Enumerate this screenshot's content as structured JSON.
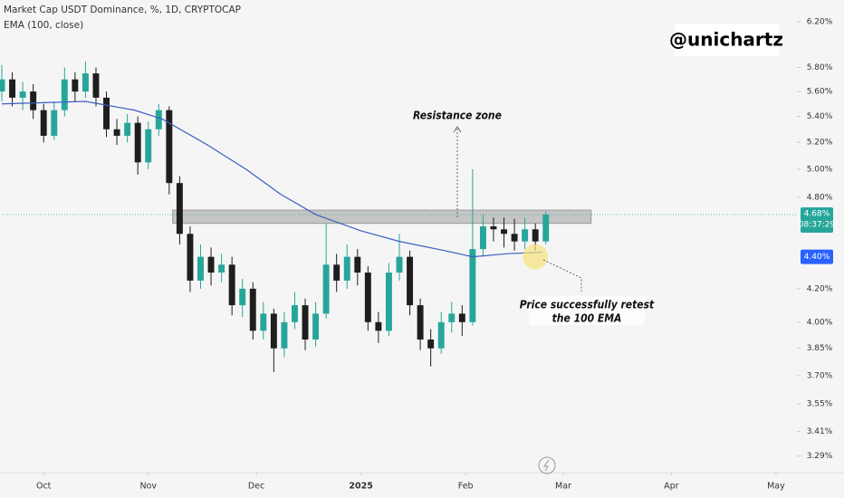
{
  "chart_data": {
    "type": "candlestick",
    "title": "Market Cap USDT Dominance, %, 1D, CRYPTOCAP",
    "subtitle": "EMA (100, close)",
    "watermark": "@unichartz",
    "log_scale": true,
    "up_color": "#26a69a",
    "down_color": "#1e1e1e",
    "x": [
      0,
      3,
      6,
      9,
      12,
      15,
      18,
      21,
      24,
      27,
      30,
      33,
      36,
      39,
      42,
      45,
      48,
      51,
      54,
      57,
      60,
      63,
      66,
      69,
      72,
      75,
      78,
      81,
      84,
      87,
      90,
      93,
      96,
      99,
      102,
      105,
      108,
      111,
      114,
      117,
      120,
      123,
      126,
      129,
      132,
      135,
      138,
      141,
      144,
      147,
      150,
      153,
      156
    ],
    "open": [
      5.6,
      5.7,
      5.55,
      5.6,
      5.45,
      5.25,
      5.45,
      5.7,
      5.6,
      5.75,
      5.55,
      5.3,
      5.25,
      5.35,
      5.05,
      5.3,
      5.45,
      4.9,
      4.55,
      4.25,
      4.4,
      4.3,
      4.35,
      4.1,
      4.2,
      3.95,
      4.05,
      3.85,
      4.0,
      4.1,
      3.9,
      4.05,
      4.35,
      4.25,
      4.4,
      4.3,
      4.0,
      3.95,
      4.3,
      4.4,
      4.1,
      3.9,
      3.85,
      4.0,
      4.05,
      4.0,
      4.45,
      4.6,
      4.58,
      4.55,
      4.5,
      4.58,
      4.5
    ],
    "high": [
      5.82,
      5.76,
      5.68,
      5.66,
      5.5,
      5.52,
      5.8,
      5.76,
      5.85,
      5.8,
      5.6,
      5.38,
      5.42,
      5.4,
      5.36,
      5.5,
      5.48,
      4.95,
      4.6,
      4.48,
      4.46,
      4.42,
      4.4,
      4.26,
      4.24,
      4.12,
      4.08,
      4.06,
      4.18,
      4.14,
      4.12,
      4.62,
      4.42,
      4.48,
      4.45,
      4.34,
      4.06,
      4.36,
      4.55,
      4.44,
      4.14,
      3.96,
      4.06,
      4.12,
      4.1,
      5.0,
      4.68,
      4.66,
      4.66,
      4.65,
      4.66,
      4.62,
      4.7
    ],
    "low": [
      5.52,
      5.48,
      5.45,
      5.38,
      5.2,
      5.22,
      5.4,
      5.52,
      5.55,
      5.48,
      5.24,
      5.18,
      5.2,
      4.96,
      5.0,
      5.25,
      4.82,
      4.48,
      4.18,
      4.2,
      4.22,
      4.24,
      4.04,
      4.03,
      3.9,
      3.9,
      3.72,
      3.8,
      3.96,
      3.84,
      3.86,
      4.02,
      4.18,
      4.2,
      4.22,
      3.95,
      3.88,
      3.92,
      4.25,
      4.04,
      3.84,
      3.75,
      3.82,
      3.94,
      3.92,
      3.98,
      4.4,
      4.5,
      4.46,
      4.44,
      4.45,
      4.44,
      4.48
    ],
    "close": [
      5.7,
      5.55,
      5.6,
      5.45,
      5.25,
      5.45,
      5.7,
      5.6,
      5.75,
      5.55,
      5.3,
      5.25,
      5.35,
      5.05,
      5.3,
      5.45,
      4.9,
      4.55,
      4.25,
      4.4,
      4.3,
      4.35,
      4.1,
      4.2,
      3.95,
      4.05,
      3.85,
      4.0,
      4.1,
      3.9,
      4.05,
      4.35,
      4.25,
      4.4,
      4.3,
      4.0,
      3.95,
      4.3,
      4.4,
      4.1,
      3.9,
      3.85,
      4.0,
      4.05,
      4.0,
      4.45,
      4.6,
      4.58,
      4.55,
      4.5,
      4.58,
      4.5,
      4.68
    ],
    "ema": {
      "color": "#3b5fc0",
      "x": [
        0,
        24,
        38,
        46,
        59,
        70,
        80,
        90,
        103,
        114,
        127,
        135,
        145,
        155
      ],
      "values": [
        5.5,
        5.52,
        5.45,
        5.38,
        5.18,
        5.0,
        4.82,
        4.68,
        4.57,
        4.5,
        4.44,
        4.4,
        4.42,
        4.43
      ]
    },
    "zone": {
      "x": [
        49,
        169
      ],
      "ylim": [
        4.62,
        4.71
      ],
      "color": "#b4b4b4"
    },
    "highlight": {
      "x": 153,
      "y": 4.4,
      "color": "#f7e27a"
    },
    "annotations": [
      {
        "text": "Resistance zone"
      },
      {
        "text": [
          "Price successfully retest",
          "the 100 EMA"
        ]
      }
    ],
    "price_label": {
      "value": 4.68,
      "label": "4.68%",
      "countdown": "08:37:29",
      "color": "#26a69a"
    },
    "ema_label": {
      "value": 4.4,
      "label": "4.40%",
      "color": "#2962ff"
    },
    "xlim": [
      0,
      228
    ],
    "xticks": [
      {
        "value": 12,
        "label": "Oct"
      },
      {
        "value": 42,
        "label": "Nov"
      },
      {
        "value": 73,
        "label": "Dec"
      },
      {
        "value": 103,
        "label": "2025"
      },
      {
        "value": 133,
        "label": "Feb"
      },
      {
        "value": 161,
        "label": "Mar"
      },
      {
        "value": 192,
        "label": "Apr"
      },
      {
        "value": 222,
        "label": "May"
      }
    ],
    "ylim": [
      3.22,
      6.4
    ],
    "yticks": [
      {
        "value": 6.2,
        "label": "6.20%"
      },
      {
        "value": 5.8,
        "label": "5.80%"
      },
      {
        "value": 5.6,
        "label": "5.60%"
      },
      {
        "value": 5.4,
        "label": "5.40%"
      },
      {
        "value": 5.2,
        "label": "5.20%"
      },
      {
        "value": 5.0,
        "label": "5.00%"
      },
      {
        "value": 4.8,
        "label": "4.80%"
      },
      {
        "value": 4.2,
        "label": "4.20%"
      },
      {
        "value": 4.0,
        "label": "4.00%"
      },
      {
        "value": 3.85,
        "label": "3.85%"
      },
      {
        "value": 3.7,
        "label": "3.70%"
      },
      {
        "value": 3.55,
        "label": "3.55%"
      },
      {
        "value": 3.41,
        "label": "3.41%"
      },
      {
        "value": 3.29,
        "label": "3.29%"
      }
    ]
  }
}
